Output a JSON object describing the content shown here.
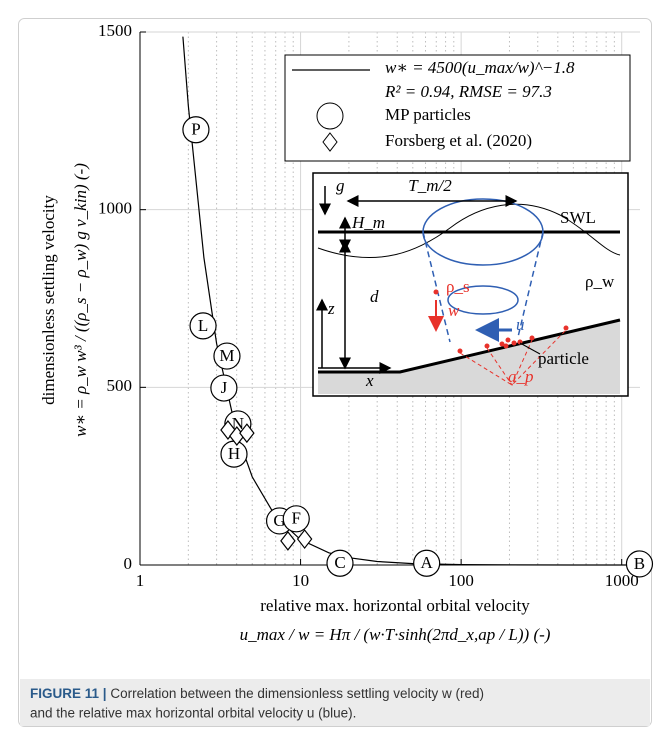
{
  "chart_data": {
    "type": "scatter",
    "xlabel": "relative max. horizontal orbital velocity",
    "xlabel_formula": "u_max / w = Hπ / (w·T·sinh(2πd_x,ap / L)) (-)",
    "ylabel": "dimensionless settling velocity",
    "ylabel_formula": "w∗ = ρ_w w³ / ((ρ_s − ρ_w) g ν_kin) (-)",
    "xscale": "log",
    "xlim": [
      1,
      1300
    ],
    "ylim": [
      0,
      1500
    ],
    "xticks": [
      1,
      10,
      100,
      1000
    ],
    "xminor_ticks": [
      2,
      3,
      4,
      5,
      6,
      7,
      8,
      9,
      20,
      30,
      40,
      50,
      60,
      70,
      80,
      90,
      200,
      300,
      400,
      500,
      600,
      700,
      800,
      900
    ],
    "yticks": [
      0,
      500,
      1000,
      1500
    ],
    "grid": true,
    "legend": "upper right",
    "fit": {
      "name": "w∗ = 4500(u_max/w)^−1.8",
      "annotation": "R² = 0.94, RMSE = 97.3",
      "color": "#000000",
      "x": [
        1.85,
        2,
        2.5,
        3,
        4,
        5,
        7,
        10,
        15,
        20,
        30,
        50,
        100,
        200,
        500,
        1000,
        1300
      ],
      "y": [
        1487,
        1292,
        865,
        623,
        371,
        248,
        135.6,
        71.3,
        34.4,
        20.5,
        9.87,
        3.94,
        1.13,
        0.32,
        0.062,
        0.018,
        0.011
      ]
    },
    "series": [
      {
        "name": "MP particles",
        "marker": "circle",
        "color": "#000000",
        "labels": [
          "P",
          "L",
          "M",
          "J",
          "N",
          "H",
          "G",
          "F",
          "C",
          "A",
          "B"
        ],
        "x": [
          2.23,
          2.47,
          3.48,
          3.33,
          4.07,
          3.85,
          7.4,
          9.4,
          17.6,
          61,
          1290
        ],
        "y": [
          1225,
          673,
          588,
          498,
          397,
          312,
          124,
          130,
          5,
          5,
          3
        ]
      },
      {
        "name": "Forsberg et al. (2020)",
        "marker": "diamond",
        "color": "#000000",
        "x": [
          3.53,
          4.01,
          4.63,
          8.34,
          10.6
        ],
        "y": [
          380,
          363,
          371,
          68,
          73
        ]
      }
    ]
  },
  "inset": {
    "g": "g",
    "period": "T_m/2",
    "height": "H_m",
    "swl": "SWL",
    "depth": "d",
    "rho_s": "ρ_s",
    "w": "w",
    "rho_w": "ρ_w",
    "z": "z",
    "u": "u",
    "particle": "particle",
    "x": "x",
    "a_p": "a_p"
  },
  "caption": {
    "label": "FIGURE 11 |",
    "lines": [
      "Correlation between the dimensionless settling velocity w (red)",
      "and the relative max horizontal orbital velocity u (blue)."
    ]
  }
}
